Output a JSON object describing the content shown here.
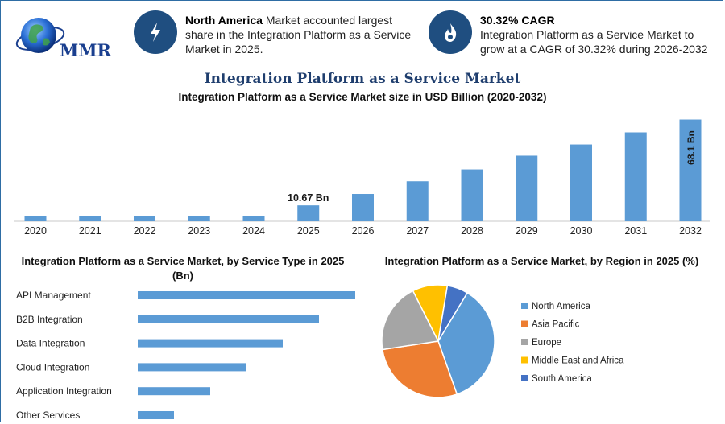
{
  "logo": {
    "text": "MMR"
  },
  "callouts": [
    {
      "icon": "lightning-icon",
      "bold": "North America",
      "text": " Market accounted largest share in the Integration Platform as a Service Market in 2025."
    },
    {
      "icon": "flame-icon",
      "bold": "30.32% CAGR",
      "text": "Integration Platform as a Service Market to grow at a CAGR of 30.32% during 2026-2032"
    }
  ],
  "header": {
    "title": "Integration Platform as a Service Market",
    "subtitle": "Integration Platform as a Service Market size in USD Billion (2020-2032)"
  },
  "colors": {
    "bar": "#5b9bd5",
    "accent": "#1f4e80",
    "pie": [
      "#5b9bd5",
      "#ed7d31",
      "#a5a5a5",
      "#ffc000",
      "#4472c4"
    ]
  },
  "chart_data": [
    {
      "type": "bar",
      "title": "Integration Platform as a Service Market size in USD Billion (2020-2032)",
      "categories": [
        "2020",
        "2021",
        "2022",
        "2023",
        "2024",
        "2025",
        "2026",
        "2027",
        "2028",
        "2029",
        "2030",
        "2031",
        "2032"
      ],
      "values": [
        3.4,
        3.4,
        3.4,
        3.4,
        3.4,
        10.67,
        18.3,
        26.8,
        34.7,
        43.9,
        51.4,
        59.5,
        68.1
      ],
      "data_labels": [
        {
          "index": 5,
          "text": "10.67 Bn",
          "orientation": "horizontal"
        },
        {
          "index": 12,
          "text": "68.1 Bn",
          "orientation": "vertical"
        }
      ],
      "ylim": [
        0,
        70
      ],
      "grid": false
    },
    {
      "type": "bar",
      "orientation": "horizontal",
      "title": "Integration Platform as a Service Market, by Service Type in 2025 (Bn)",
      "categories": [
        "API Management",
        "B2B Integration",
        "Data Integration",
        "Cloud Integration",
        "Application Integration",
        "Other Services"
      ],
      "values": [
        6.0,
        5.0,
        4.0,
        3.0,
        2.0,
        1.0
      ],
      "grid": false
    },
    {
      "type": "pie",
      "title": "Integration Platform as a Service Market, by Region in 2025 (%)",
      "categories": [
        "North America",
        "Asia Pacific",
        "Europe",
        "Middle East and Africa",
        "South America"
      ],
      "values": [
        36,
        28,
        20,
        10,
        6
      ],
      "legend": "right"
    }
  ]
}
